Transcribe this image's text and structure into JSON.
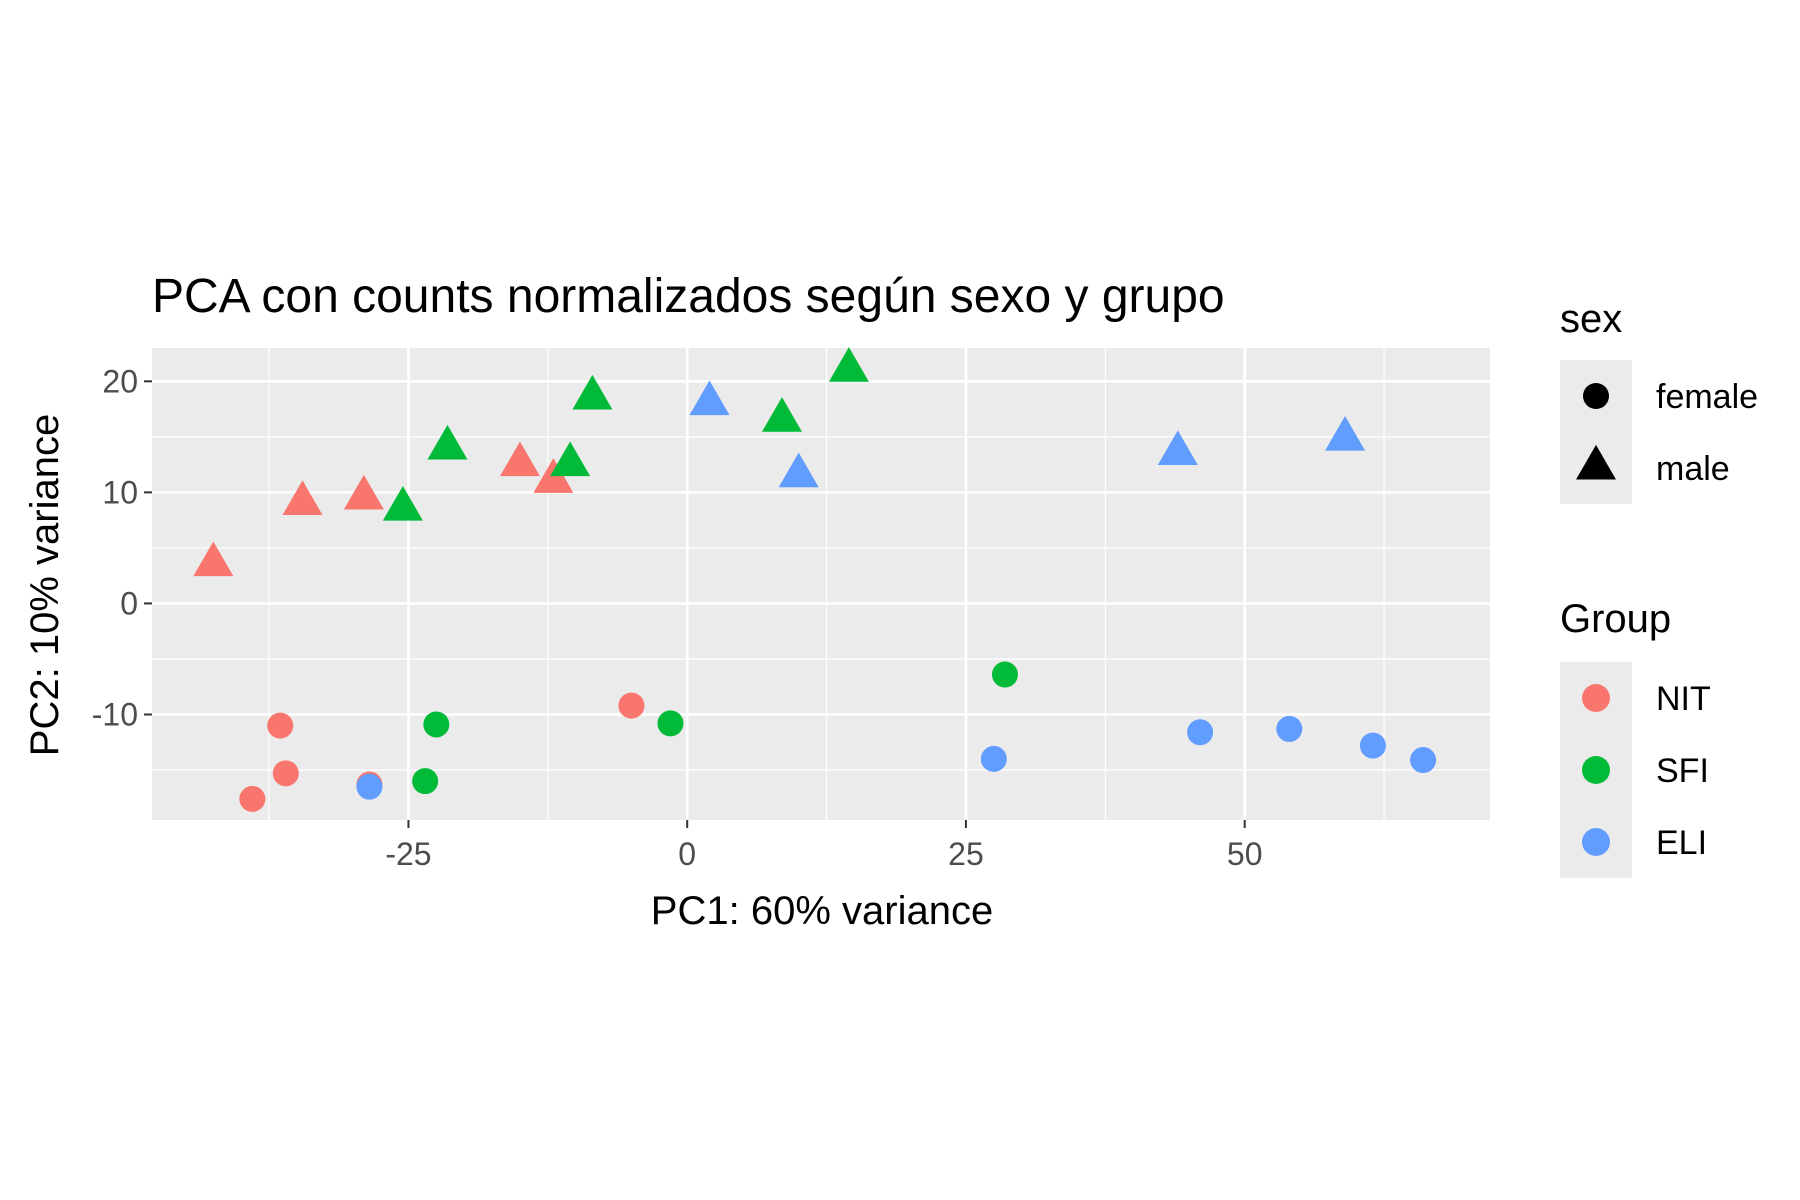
{
  "chart_data": {
    "type": "scatter",
    "title": "PCA con counts normalizados según sexo y grupo",
    "xlabel": "PC1: 60% variance",
    "ylabel": "PC2: 10% variance",
    "xlim": [
      -48,
      72
    ],
    "ylim": [
      -19.5,
      23
    ],
    "x_ticks": [
      -25,
      0,
      25,
      50
    ],
    "x_tick_labels": [
      "-25",
      "0",
      "25",
      "50"
    ],
    "y_ticks": [
      -10,
      0,
      10,
      20
    ],
    "y_tick_labels": [
      "-10",
      "0",
      "10",
      "20"
    ],
    "grid": true,
    "colors": {
      "NIT": "#F8766D",
      "SFI": "#00BA38",
      "ELI": "#619CFF"
    },
    "legends": [
      {
        "title": "sex",
        "position": "right-top",
        "entries": [
          {
            "label": "female",
            "shape": "circle"
          },
          {
            "label": "male",
            "shape": "triangle"
          }
        ]
      },
      {
        "title": "Group",
        "position": "right-bottom",
        "entries": [
          {
            "label": "NIT",
            "color": "#F8766D"
          },
          {
            "label": "SFI",
            "color": "#00BA38"
          },
          {
            "label": "ELI",
            "color": "#619CFF"
          }
        ]
      }
    ],
    "points": [
      {
        "x": -42.5,
        "y": 3.5,
        "group": "NIT",
        "sex": "male"
      },
      {
        "x": -34.5,
        "y": 9.0,
        "group": "NIT",
        "sex": "male"
      },
      {
        "x": -29.0,
        "y": 9.5,
        "group": "NIT",
        "sex": "male"
      },
      {
        "x": -15.0,
        "y": 12.5,
        "group": "NIT",
        "sex": "male"
      },
      {
        "x": -12.0,
        "y": 11.0,
        "group": "NIT",
        "sex": "male"
      },
      {
        "x": -36.5,
        "y": -11.0,
        "group": "NIT",
        "sex": "female"
      },
      {
        "x": -36.0,
        "y": -15.3,
        "group": "NIT",
        "sex": "female"
      },
      {
        "x": -39.0,
        "y": -17.6,
        "group": "NIT",
        "sex": "female"
      },
      {
        "x": -28.5,
        "y": -16.3,
        "group": "NIT",
        "sex": "female"
      },
      {
        "x": -5.0,
        "y": -9.2,
        "group": "NIT",
        "sex": "female"
      },
      {
        "x": -25.5,
        "y": 8.5,
        "group": "SFI",
        "sex": "male"
      },
      {
        "x": -21.5,
        "y": 14.0,
        "group": "SFI",
        "sex": "male"
      },
      {
        "x": -8.5,
        "y": 18.5,
        "group": "SFI",
        "sex": "male"
      },
      {
        "x": -10.5,
        "y": 12.5,
        "group": "SFI",
        "sex": "male"
      },
      {
        "x": 8.5,
        "y": 16.5,
        "group": "SFI",
        "sex": "male"
      },
      {
        "x": 14.5,
        "y": 21.0,
        "group": "SFI",
        "sex": "male"
      },
      {
        "x": -22.5,
        "y": -10.9,
        "group": "SFI",
        "sex": "female"
      },
      {
        "x": -23.5,
        "y": -16.0,
        "group": "SFI",
        "sex": "female"
      },
      {
        "x": -1.5,
        "y": -10.8,
        "group": "SFI",
        "sex": "female"
      },
      {
        "x": 28.5,
        "y": -6.4,
        "group": "SFI",
        "sex": "female"
      },
      {
        "x": 2.0,
        "y": 18.0,
        "group": "ELI",
        "sex": "male"
      },
      {
        "x": 10.0,
        "y": 11.5,
        "group": "ELI",
        "sex": "male"
      },
      {
        "x": 44.0,
        "y": 13.5,
        "group": "ELI",
        "sex": "male"
      },
      {
        "x": 59.0,
        "y": 14.8,
        "group": "ELI",
        "sex": "male"
      },
      {
        "x": -28.5,
        "y": -16.5,
        "group": "ELI",
        "sex": "female"
      },
      {
        "x": 27.5,
        "y": -14.0,
        "group": "ELI",
        "sex": "female"
      },
      {
        "x": 46.0,
        "y": -11.6,
        "group": "ELI",
        "sex": "female"
      },
      {
        "x": 54.0,
        "y": -11.3,
        "group": "ELI",
        "sex": "female"
      },
      {
        "x": 61.5,
        "y": -12.8,
        "group": "ELI",
        "sex": "female"
      },
      {
        "x": 66.0,
        "y": -14.1,
        "group": "ELI",
        "sex": "female"
      }
    ]
  }
}
